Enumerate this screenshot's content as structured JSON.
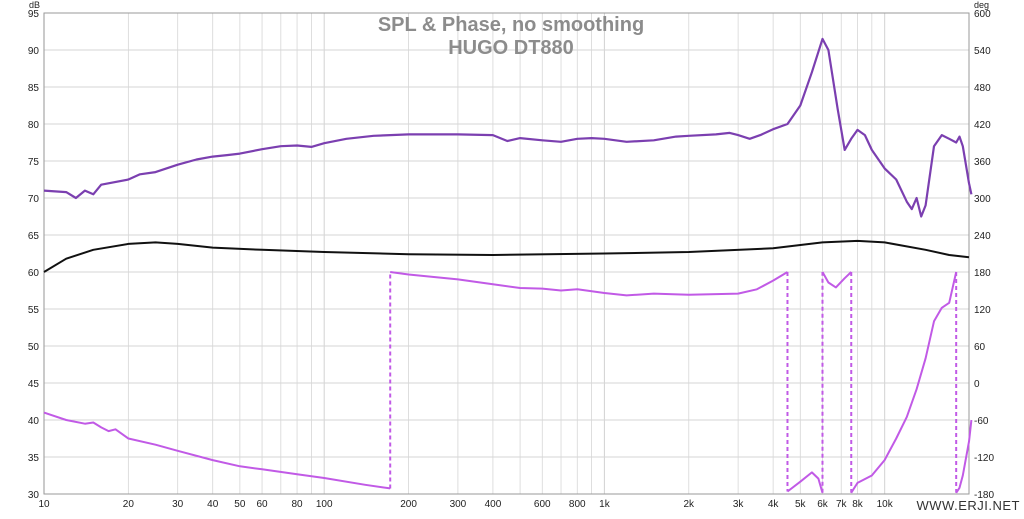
{
  "chart_data": {
    "type": "line",
    "title": "SPL & Phase, no smoothing",
    "subtitle": "HUGO DT880",
    "watermark": "WWW.ERJI.NET",
    "x_axis": {
      "scale": "log",
      "range": [
        10,
        20000
      ],
      "ticks": [
        10,
        20,
        30,
        40,
        50,
        60,
        80,
        100,
        200,
        300,
        400,
        600,
        800,
        1000,
        2000,
        3000,
        4000,
        5000,
        6000,
        7000,
        8000,
        10000
      ],
      "tick_labels": [
        "10",
        "20",
        "30",
        "40",
        "50",
        "60",
        "80",
        "100",
        "200",
        "300",
        "400",
        "600",
        "800",
        "1k",
        "2k",
        "3k",
        "4k",
        "5k",
        "6k",
        "7k",
        "8k",
        "10k"
      ]
    },
    "y_left": {
      "unit": "dB",
      "range": [
        30,
        95
      ],
      "ticks": [
        30,
        35,
        40,
        45,
        50,
        55,
        60,
        65,
        70,
        75,
        80,
        85,
        90,
        95
      ]
    },
    "y_right": {
      "unit": "deg",
      "range": [
        -180,
        600
      ],
      "ticks": [
        -180,
        -120,
        -60,
        0,
        60,
        120,
        180,
        240,
        300,
        360,
        420,
        480,
        540,
        600
      ]
    },
    "grid": true,
    "colors": {
      "spl": "#7b3fb0",
      "reference": "#111111",
      "phase": "#c15ae6",
      "grid": "#d6d6d6",
      "axis": "#9a9a9a",
      "title": "#8c8c8c"
    },
    "series": [
      {
        "axis": "left",
        "style": "spl",
        "points": [
          [
            10,
            71
          ],
          [
            12,
            70.8
          ],
          [
            13,
            70
          ],
          [
            14,
            71
          ],
          [
            15,
            70.5
          ],
          [
            16,
            71.8
          ],
          [
            20,
            72.5
          ],
          [
            22,
            73.2
          ],
          [
            25,
            73.5
          ],
          [
            30,
            74.5
          ],
          [
            35,
            75.2
          ],
          [
            40,
            75.6
          ],
          [
            45,
            75.8
          ],
          [
            50,
            76
          ],
          [
            60,
            76.6
          ],
          [
            70,
            77
          ],
          [
            80,
            77.1
          ],
          [
            90,
            76.9
          ],
          [
            100,
            77.4
          ],
          [
            120,
            78
          ],
          [
            150,
            78.4
          ],
          [
            200,
            78.6
          ],
          [
            300,
            78.6
          ],
          [
            400,
            78.5
          ],
          [
            450,
            77.7
          ],
          [
            500,
            78.1
          ],
          [
            600,
            77.8
          ],
          [
            700,
            77.6
          ],
          [
            800,
            78
          ],
          [
            900,
            78.1
          ],
          [
            1000,
            78
          ],
          [
            1200,
            77.6
          ],
          [
            1500,
            77.8
          ],
          [
            1800,
            78.3
          ],
          [
            2000,
            78.4
          ],
          [
            2500,
            78.6
          ],
          [
            2800,
            78.8
          ],
          [
            3000,
            78.5
          ],
          [
            3300,
            78
          ],
          [
            3600,
            78.5
          ],
          [
            4000,
            79.3
          ],
          [
            4500,
            80
          ],
          [
            5000,
            82.5
          ],
          [
            5500,
            87
          ],
          [
            6000,
            91.5
          ],
          [
            6300,
            90
          ],
          [
            6800,
            82
          ],
          [
            7200,
            76.5
          ],
          [
            7600,
            78
          ],
          [
            8000,
            79.2
          ],
          [
            8500,
            78.5
          ],
          [
            9000,
            76.5
          ],
          [
            10000,
            74
          ],
          [
            11000,
            72.5
          ],
          [
            12000,
            69.5
          ],
          [
            12500,
            68.5
          ],
          [
            13000,
            70
          ],
          [
            13500,
            67.5
          ],
          [
            14000,
            69
          ],
          [
            15000,
            77
          ],
          [
            16000,
            78.5
          ],
          [
            17000,
            78
          ],
          [
            18000,
            77.5
          ],
          [
            18500,
            78.3
          ],
          [
            19000,
            77
          ],
          [
            20000,
            72
          ],
          [
            20400,
            70.5
          ]
        ]
      },
      {
        "axis": "left",
        "style": "reference",
        "points": [
          [
            10,
            60
          ],
          [
            12,
            61.8
          ],
          [
            15,
            63
          ],
          [
            20,
            63.8
          ],
          [
            25,
            64
          ],
          [
            30,
            63.8
          ],
          [
            40,
            63.3
          ],
          [
            60,
            63
          ],
          [
            100,
            62.7
          ],
          [
            200,
            62.4
          ],
          [
            400,
            62.3
          ],
          [
            1000,
            62.5
          ],
          [
            2000,
            62.7
          ],
          [
            4000,
            63.2
          ],
          [
            6000,
            64
          ],
          [
            8000,
            64.2
          ],
          [
            10000,
            64
          ],
          [
            14000,
            63
          ],
          [
            17000,
            62.3
          ],
          [
            20000,
            62
          ]
        ]
      },
      {
        "axis": "right",
        "style": "phase",
        "points": [
          [
            10,
            -48
          ],
          [
            12,
            -60
          ],
          [
            14,
            -66
          ],
          [
            15,
            -64
          ],
          [
            16,
            -72
          ],
          [
            17,
            -78
          ],
          [
            18,
            -75
          ],
          [
            20,
            -90
          ],
          [
            25,
            -100
          ],
          [
            30,
            -110
          ],
          [
            40,
            -125
          ],
          [
            50,
            -135
          ],
          [
            60,
            -140
          ],
          [
            80,
            -148
          ],
          [
            100,
            -154
          ],
          [
            140,
            -165
          ],
          [
            172,
            -171
          ],
          [
            172,
            180
          ],
          [
            200,
            176
          ],
          [
            300,
            168
          ],
          [
            400,
            160
          ],
          [
            500,
            154
          ],
          [
            600,
            153
          ],
          [
            700,
            150
          ],
          [
            800,
            152
          ],
          [
            1000,
            146
          ],
          [
            1200,
            142
          ],
          [
            1500,
            145
          ],
          [
            2000,
            143
          ],
          [
            3000,
            145
          ],
          [
            3500,
            152
          ],
          [
            4000,
            166
          ],
          [
            4500,
            180
          ],
          [
            4500,
            -176
          ],
          [
            5000,
            -160
          ],
          [
            5500,
            -145
          ],
          [
            5800,
            -155
          ],
          [
            6000,
            -178
          ],
          [
            6000,
            180
          ],
          [
            6300,
            163
          ],
          [
            6700,
            155
          ],
          [
            7200,
            170
          ],
          [
            7600,
            180
          ],
          [
            7600,
            -178
          ],
          [
            8000,
            -162
          ],
          [
            9000,
            -150
          ],
          [
            10000,
            -125
          ],
          [
            11000,
            -90
          ],
          [
            12000,
            -55
          ],
          [
            13000,
            -10
          ],
          [
            14000,
            40
          ],
          [
            15000,
            100
          ],
          [
            16000,
            122
          ],
          [
            17000,
            130
          ],
          [
            18000,
            180
          ],
          [
            18000,
            -178
          ],
          [
            18500,
            -170
          ],
          [
            19000,
            -150
          ],
          [
            20000,
            -95
          ],
          [
            20400,
            -60
          ]
        ]
      }
    ],
    "phase_wraps": [
      172,
      4500,
      6000,
      7600,
      18000
    ]
  }
}
